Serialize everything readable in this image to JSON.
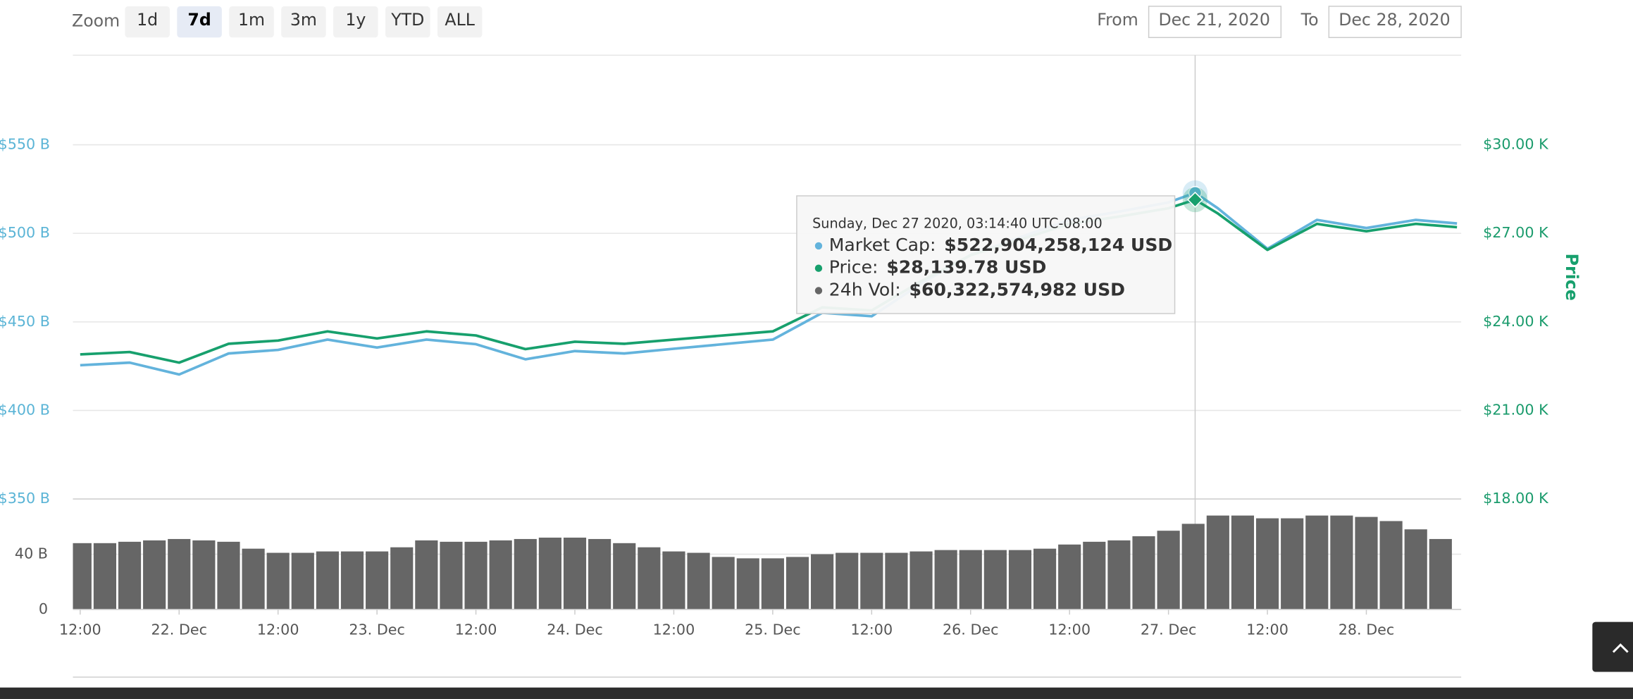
{
  "zoom": {
    "label": "Zoom",
    "options": [
      "1d",
      "7d",
      "1m",
      "3m",
      "1y",
      "YTD",
      "ALL"
    ],
    "selected": "7d"
  },
  "range": {
    "from_label": "From",
    "from": "Dec 21, 2020",
    "to_label": "To",
    "to": "Dec 28, 2020"
  },
  "tooltip": {
    "header": "Sunday, Dec 27 2020, 03:14:40 UTC-08:00",
    "items": [
      {
        "label": "Market Cap:",
        "value": "$522,904,258,124 USD",
        "color": "#63b3dc"
      },
      {
        "label": "Price:",
        "value": "$28,139.78 USD",
        "color": "#17a06d"
      },
      {
        "label": "24h Vol:",
        "value": "$60,322,574,982 USD",
        "color": "#666666"
      }
    ],
    "x": "2020-12-27 03:14",
    "point": 23
  },
  "chart_data": [
    {
      "type": "line",
      "y2_label": "Price",
      "xlim": [
        "2020-12-21 11:07",
        "2020-12-28 11:30"
      ],
      "ylim": [
        350,
        600
      ],
      "yticks": [
        {
          "value": 350,
          "label": "$350 B"
        },
        {
          "value": 400,
          "label": "$400 B"
        },
        {
          "value": 450,
          "label": "$450 B"
        },
        {
          "value": 500,
          "label": "$500 B"
        },
        {
          "value": 550,
          "label": "$550 B"
        }
      ],
      "y2lim": [
        18000,
        33000
      ],
      "y2ticks": [
        {
          "value": 18000,
          "label": "$18.00 K"
        },
        {
          "value": 21000,
          "label": "$21.00 K"
        },
        {
          "value": 24000,
          "label": "$24.00 K"
        },
        {
          "value": 27000,
          "label": "$27.00 K"
        },
        {
          "value": 30000,
          "label": "$30.00 K"
        }
      ],
      "grid": true,
      "x": [
        "2020-12-21 12:00",
        "2020-12-21 18:00",
        "2020-12-22 00:00",
        "2020-12-22 06:00",
        "2020-12-22 12:00",
        "2020-12-22 18:00",
        "2020-12-23 00:00",
        "2020-12-23 06:00",
        "2020-12-23 12:00",
        "2020-12-23 18:00",
        "2020-12-24 00:00",
        "2020-12-24 06:00",
        "2020-12-24 12:00",
        "2020-12-24 18:00",
        "2020-12-25 00:00",
        "2020-12-25 06:00",
        "2020-12-25 12:00",
        "2020-12-25 18:00",
        "2020-12-26 00:00",
        "2020-12-26 06:00",
        "2020-12-26 12:00",
        "2020-12-26 18:00",
        "2020-12-27 00:00",
        "2020-12-27 03:14",
        "2020-12-27 06:00",
        "2020-12-27 12:00",
        "2020-12-27 18:00",
        "2020-12-28 00:00",
        "2020-12-28 06:00",
        "2020-12-28 11:00"
      ],
      "series": [
        {
          "name": "Market Cap",
          "color": "#63b3dc",
          "axis": "y",
          "values": [
            425.5,
            427,
            420.3,
            432.2,
            434.2,
            440,
            435.5,
            440,
            437.4,
            428.9,
            433.5,
            432.2,
            434.8,
            437.4,
            440,
            455.1,
            453.2,
            471.6,
            487.9,
            497.8,
            507.6,
            512.3,
            517.5,
            522.904258124,
            514.1,
            491.3,
            507.6,
            503,
            507.6,
            505.6
          ]
        },
        {
          "name": "Price",
          "color": "#17a06d",
          "axis": "y2",
          "values": [
            22900,
            22980,
            22620,
            23260,
            23370,
            23680,
            23440,
            23680,
            23540,
            23080,
            23330,
            23260,
            23400,
            23540,
            23680,
            24490,
            24390,
            25380,
            26260,
            26790,
            27320,
            27570,
            27850,
            28139.78,
            27670,
            26440,
            27320,
            27070,
            27320,
            27210
          ]
        }
      ]
    },
    {
      "type": "bar",
      "xlim": [
        "2020-12-21 11:07",
        "2020-12-28 11:30"
      ],
      "ylim": [
        0,
        80
      ],
      "yticks": [
        0,
        {
          "value": 40,
          "label": "40 B"
        }
      ],
      "xticks": [
        {
          "value": "2020-12-21 12:00",
          "label": "12:00"
        },
        {
          "value": "2020-12-22 00:00",
          "label": "22. Dec"
        },
        {
          "value": "2020-12-22 12:00",
          "label": "12:00"
        },
        {
          "value": "2020-12-23 00:00",
          "label": "23. Dec"
        },
        {
          "value": "2020-12-23 12:00",
          "label": "12:00"
        },
        {
          "value": "2020-12-24 00:00",
          "label": "24. Dec"
        },
        {
          "value": "2020-12-24 12:00",
          "label": "12:00"
        },
        {
          "value": "2020-12-25 00:00",
          "label": "25. Dec"
        },
        {
          "value": "2020-12-25 12:00",
          "label": "12:00"
        },
        {
          "value": "2020-12-26 00:00",
          "label": "26. Dec"
        },
        {
          "value": "2020-12-26 12:00",
          "label": "12:00"
        },
        {
          "value": "2020-12-27 00:00",
          "label": "27. Dec"
        },
        {
          "value": "2020-12-27 12:00",
          "label": "12:00"
        },
        {
          "value": "2020-12-28 00:00",
          "label": "28. Dec"
        }
      ],
      "color": "#666666",
      "x": [
        "2020-12-21 12:00",
        "2020-12-21 15:00",
        "2020-12-21 18:00",
        "2020-12-21 21:00",
        "2020-12-22 00:00",
        "2020-12-22 03:00",
        "2020-12-22 06:00",
        "2020-12-22 09:00",
        "2020-12-22 12:00",
        "2020-12-22 15:00",
        "2020-12-22 18:00",
        "2020-12-22 21:00",
        "2020-12-23 00:00",
        "2020-12-23 03:00",
        "2020-12-23 06:00",
        "2020-12-23 09:00",
        "2020-12-23 12:00",
        "2020-12-23 15:00",
        "2020-12-23 18:00",
        "2020-12-23 21:00",
        "2020-12-24 00:00",
        "2020-12-24 03:00",
        "2020-12-24 06:00",
        "2020-12-24 09:00",
        "2020-12-24 12:00",
        "2020-12-24 15:00",
        "2020-12-24 18:00",
        "2020-12-24 21:00",
        "2020-12-25 00:00",
        "2020-12-25 03:00",
        "2020-12-25 06:00",
        "2020-12-25 09:00",
        "2020-12-25 12:00",
        "2020-12-25 15:00",
        "2020-12-25 18:00",
        "2020-12-25 21:00",
        "2020-12-26 00:00",
        "2020-12-26 03:00",
        "2020-12-26 06:00",
        "2020-12-26 09:00",
        "2020-12-26 12:00",
        "2020-12-26 15:00",
        "2020-12-26 18:00",
        "2020-12-26 21:00",
        "2020-12-27 00:00",
        "2020-12-27 03:00",
        "2020-12-27 06:00",
        "2020-12-27 09:00",
        "2020-12-27 12:00",
        "2020-12-27 15:00",
        "2020-12-27 18:00",
        "2020-12-27 21:00",
        "2020-12-28 00:00",
        "2020-12-28 03:00",
        "2020-12-28 06:00",
        "2020-12-28 09:00"
      ],
      "values": [
        48,
        48,
        49,
        50,
        51,
        50,
        49,
        44,
        41,
        41,
        42,
        42,
        42,
        45,
        50,
        49,
        49,
        50,
        51,
        52,
        52,
        51,
        48,
        45,
        42,
        41,
        38,
        37,
        37,
        38,
        40,
        41,
        41,
        41,
        42,
        43,
        43,
        43,
        43,
        44,
        47,
        49,
        50,
        53,
        57,
        62,
        68,
        68,
        66,
        66,
        68,
        68,
        67,
        64,
        58,
        51
      ]
    }
  ]
}
